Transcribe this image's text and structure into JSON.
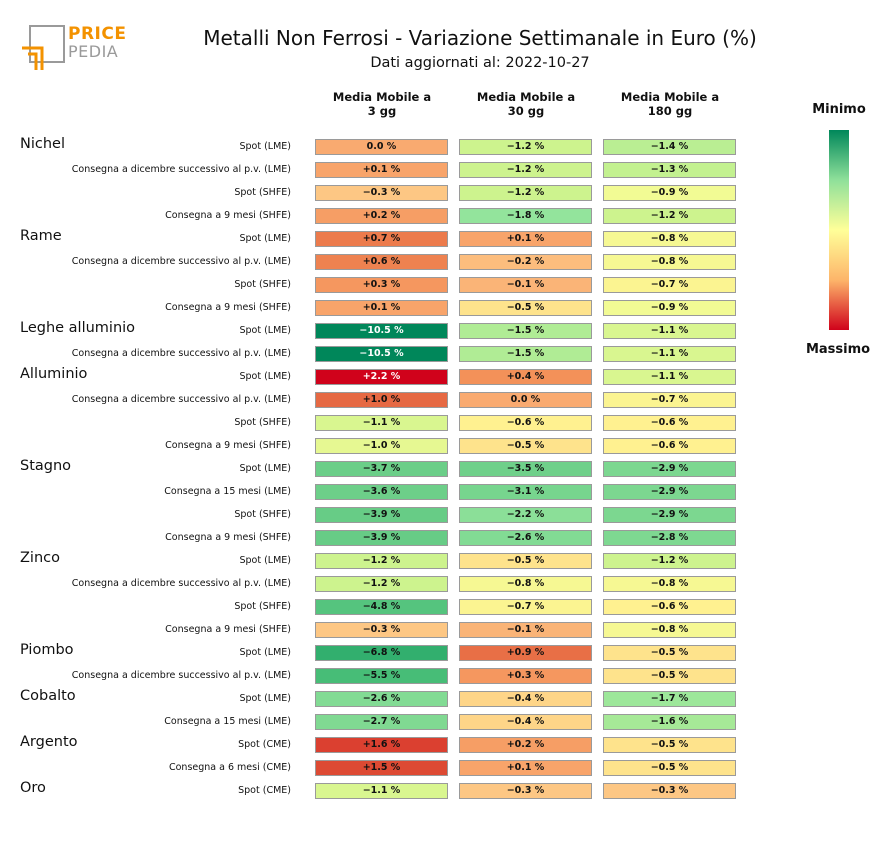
{
  "logo": {
    "word1": "PRICE",
    "word2": "PEDIA"
  },
  "title": "Metalli Non Ferrosi - Variazione Settimanale in Euro (%)",
  "subtitle": "Dati aggiornati al: 2022-10-27",
  "scale": {
    "top_label": "Minimo",
    "bottom_label": "Massimo"
  },
  "colors": {
    "min": "#00875a",
    "mid": "#ffff99",
    "max": "#d0021b",
    "cell_border": "#9a9a9a"
  },
  "chart_data": {
    "type": "heatmap",
    "columns": [
      "Media Mobile a\n3 gg",
      "Media Mobile a\n30 gg",
      "Media Mobile a\n180 gg"
    ],
    "color_scale": {
      "min_label": "Minimo",
      "max_label": "Massimo",
      "range": [
        -10.5,
        2.2
      ]
    },
    "groups": [
      {
        "metal": "Nichel",
        "rows": [
          {
            "label": "Spot (LME)",
            "values": [
              0.0,
              -1.2,
              -1.4
            ],
            "texts": [
              "0.0 %",
              "−1.2 %",
              "−1.4 %"
            ]
          },
          {
            "label": "Consegna a dicembre successivo al p.v. (LME)",
            "values": [
              0.1,
              -1.2,
              -1.3
            ],
            "texts": [
              "+0.1 %",
              "−1.2 %",
              "−1.3 %"
            ]
          },
          {
            "label": "Spot (SHFE)",
            "values": [
              -0.3,
              -1.2,
              -0.9
            ],
            "texts": [
              "−0.3 %",
              "−1.2 %",
              "−0.9 %"
            ]
          },
          {
            "label": "Consegna a 9 mesi (SHFE)",
            "values": [
              0.2,
              -1.8,
              -1.2
            ],
            "texts": [
              "+0.2 %",
              "−1.8 %",
              "−1.2 %"
            ]
          }
        ]
      },
      {
        "metal": "Rame",
        "rows": [
          {
            "label": "Spot (LME)",
            "values": [
              0.7,
              0.1,
              -0.8
            ],
            "texts": [
              "+0.7 %",
              "+0.1 %",
              "−0.8 %"
            ]
          },
          {
            "label": "Consegna a dicembre successivo al p.v. (LME)",
            "values": [
              0.6,
              -0.2,
              -0.8
            ],
            "texts": [
              "+0.6 %",
              "−0.2 %",
              "−0.8 %"
            ]
          },
          {
            "label": "Spot (SHFE)",
            "values": [
              0.3,
              -0.1,
              -0.7
            ],
            "texts": [
              "+0.3 %",
              "−0.1 %",
              "−0.7 %"
            ]
          },
          {
            "label": "Consegna a 9 mesi (SHFE)",
            "values": [
              0.1,
              -0.5,
              -0.9
            ],
            "texts": [
              "+0.1 %",
              "−0.5 %",
              "−0.9 %"
            ]
          }
        ]
      },
      {
        "metal": "Leghe alluminio",
        "rows": [
          {
            "label": "Spot (LME)",
            "values": [
              -10.5,
              -1.5,
              -1.1
            ],
            "texts": [
              "−10.5 %",
              "−1.5 %",
              "−1.1 %"
            ]
          },
          {
            "label": "Consegna a dicembre successivo al p.v. (LME)",
            "values": [
              -10.5,
              -1.5,
              -1.1
            ],
            "texts": [
              "−10.5 %",
              "−1.5 %",
              "−1.1 %"
            ]
          }
        ]
      },
      {
        "metal": "Alluminio",
        "rows": [
          {
            "label": "Spot (LME)",
            "values": [
              2.2,
              0.4,
              -1.1
            ],
            "texts": [
              "+2.2 %",
              "+0.4 %",
              "−1.1 %"
            ]
          },
          {
            "label": "Consegna a dicembre successivo al p.v. (LME)",
            "values": [
              1.0,
              0.0,
              -0.7
            ],
            "texts": [
              "+1.0 %",
              "0.0 %",
              "−0.7 %"
            ]
          },
          {
            "label": "Spot (SHFE)",
            "values": [
              -1.1,
              -0.6,
              -0.6
            ],
            "texts": [
              "−1.1 %",
              "−0.6 %",
              "−0.6 %"
            ]
          },
          {
            "label": "Consegna a 9 mesi (SHFE)",
            "values": [
              -1.0,
              -0.5,
              -0.6
            ],
            "texts": [
              "−1.0 %",
              "−0.5 %",
              "−0.6 %"
            ]
          }
        ]
      },
      {
        "metal": "Stagno",
        "rows": [
          {
            "label": "Spot (LME)",
            "values": [
              -3.7,
              -3.5,
              -2.9
            ],
            "texts": [
              "−3.7 %",
              "−3.5 %",
              "−2.9 %"
            ]
          },
          {
            "label": "Consegna a 15 mesi (LME)",
            "values": [
              -3.6,
              -3.1,
              -2.9
            ],
            "texts": [
              "−3.6 %",
              "−3.1 %",
              "−2.9 %"
            ]
          },
          {
            "label": "Spot (SHFE)",
            "values": [
              -3.9,
              -2.2,
              -2.9
            ],
            "texts": [
              "−3.9 %",
              "−2.2 %",
              "−2.9 %"
            ]
          },
          {
            "label": "Consegna a 9 mesi (SHFE)",
            "values": [
              -3.9,
              -2.6,
              -2.8
            ],
            "texts": [
              "−3.9 %",
              "−2.6 %",
              "−2.8 %"
            ]
          }
        ]
      },
      {
        "metal": "Zinco",
        "rows": [
          {
            "label": "Spot (LME)",
            "values": [
              -1.2,
              -0.5,
              -1.2
            ],
            "texts": [
              "−1.2 %",
              "−0.5 %",
              "−1.2 %"
            ]
          },
          {
            "label": "Consegna a dicembre successivo al p.v. (LME)",
            "values": [
              -1.2,
              -0.8,
              -0.8
            ],
            "texts": [
              "−1.2 %",
              "−0.8 %",
              "−0.8 %"
            ]
          },
          {
            "label": "Spot (SHFE)",
            "values": [
              -4.8,
              -0.7,
              -0.6
            ],
            "texts": [
              "−4.8 %",
              "−0.7 %",
              "−0.6 %"
            ]
          },
          {
            "label": "Consegna a 9 mesi (SHFE)",
            "values": [
              -0.3,
              -0.1,
              -0.8
            ],
            "texts": [
              "−0.3 %",
              "−0.1 %",
              "−0.8 %"
            ]
          }
        ]
      },
      {
        "metal": "Piombo",
        "rows": [
          {
            "label": "Spot (LME)",
            "values": [
              -6.8,
              0.9,
              -0.5
            ],
            "texts": [
              "−6.8 %",
              "+0.9 %",
              "−0.5 %"
            ]
          },
          {
            "label": "Consegna a dicembre successivo al p.v. (LME)",
            "values": [
              -5.5,
              0.3,
              -0.5
            ],
            "texts": [
              "−5.5 %",
              "+0.3 %",
              "−0.5 %"
            ]
          }
        ]
      },
      {
        "metal": "Cobalto",
        "rows": [
          {
            "label": "Spot (LME)",
            "values": [
              -2.6,
              -0.4,
              -1.7
            ],
            "texts": [
              "−2.6 %",
              "−0.4 %",
              "−1.7 %"
            ]
          },
          {
            "label": "Consegna a 15 mesi (LME)",
            "values": [
              -2.7,
              -0.4,
              -1.6
            ],
            "texts": [
              "−2.7 %",
              "−0.4 %",
              "−1.6 %"
            ]
          }
        ]
      },
      {
        "metal": "Argento",
        "rows": [
          {
            "label": "Spot (CME)",
            "values": [
              1.6,
              0.2,
              -0.5
            ],
            "texts": [
              "+1.6 %",
              "+0.2 %",
              "−0.5 %"
            ]
          },
          {
            "label": "Consegna a 6 mesi (CME)",
            "values": [
              1.5,
              0.1,
              -0.5
            ],
            "texts": [
              "+1.5 %",
              "+0.1 %",
              "−0.5 %"
            ]
          }
        ]
      },
      {
        "metal": "Oro",
        "rows": [
          {
            "label": "Spot (CME)",
            "values": [
              -1.1,
              -0.3,
              -0.3
            ],
            "texts": [
              "−1.1 %",
              "−0.3 %",
              "−0.3 %"
            ]
          }
        ]
      }
    ]
  }
}
